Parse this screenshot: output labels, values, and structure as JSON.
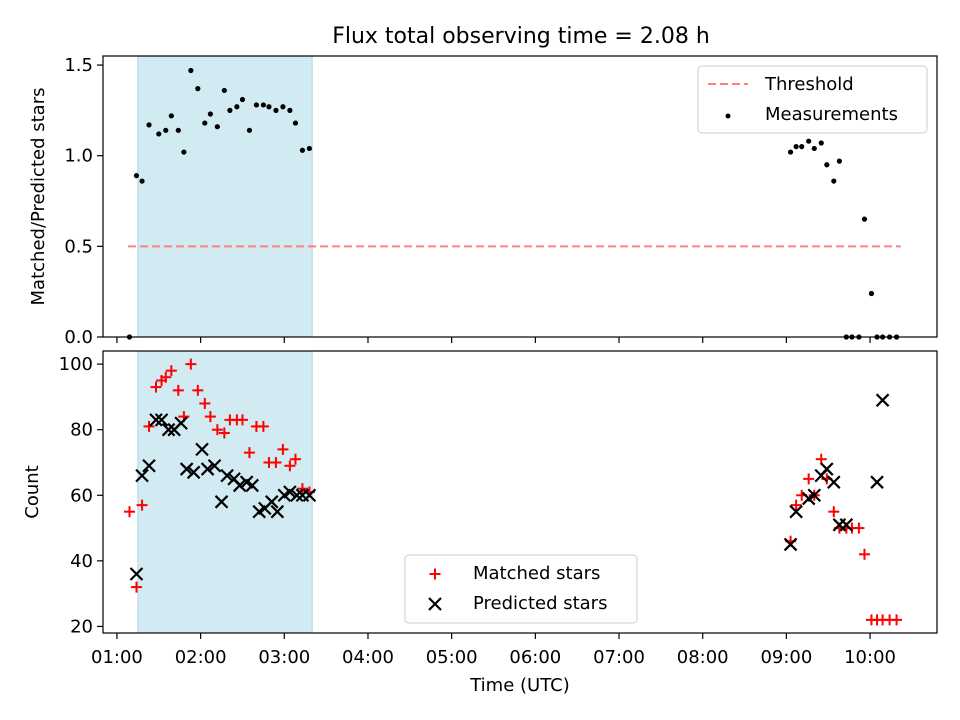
{
  "title": "Flux total observing time = 2.08 h",
  "colors": {
    "shade": "#add8e6",
    "threshold": "#ff7f7f",
    "matched": "#ff0000",
    "predicted": "#000000",
    "measurement": "#000000"
  },
  "chart_data": [
    {
      "type": "scatter",
      "ylabel": "Matched/Predicted stars",
      "xlabel": "",
      "ylim": [
        0,
        1.55
      ],
      "yticks": [
        0.0,
        0.5,
        1.0,
        1.5
      ],
      "ytick_labels": [
        "0.0",
        "0.5",
        "1.0",
        "1.5"
      ],
      "legend_position": "top-right",
      "legend": [
        "Threshold",
        "Measurements"
      ],
      "threshold": {
        "name": "Threshold",
        "y": 0.5,
        "x_start": "01:08",
        "x_end": "10:22",
        "style": "dashed"
      },
      "shaded_region": {
        "x_start": "01:15",
        "x_end": "03:20"
      },
      "series": [
        {
          "name": "Measurements",
          "x": [
            "01:09",
            "01:14",
            "01:18",
            "01:23",
            "01:30",
            "01:35",
            "01:39",
            "01:44",
            "01:48",
            "01:53",
            "01:58",
            "02:03",
            "02:07",
            "02:12",
            "02:17",
            "02:21",
            "02:26",
            "02:30",
            "02:35",
            "02:40",
            "02:45",
            "02:49",
            "02:54",
            "02:59",
            "03:04",
            "03:08",
            "03:13",
            "03:18",
            "09:03",
            "09:07",
            "09:11",
            "09:16",
            "09:20",
            "09:25",
            "09:29",
            "09:34",
            "09:38",
            "09:43",
            "09:47",
            "09:52",
            "09:56",
            "10:01",
            "10:05",
            "10:09",
            "10:14",
            "10:19"
          ],
          "y": [
            0.0,
            0.89,
            0.86,
            1.17,
            1.12,
            1.14,
            1.22,
            1.14,
            1.02,
            1.47,
            1.37,
            1.18,
            1.23,
            1.16,
            1.36,
            1.25,
            1.27,
            1.31,
            1.14,
            1.28,
            1.28,
            1.27,
            1.25,
            1.27,
            1.25,
            1.18,
            1.03,
            1.04,
            1.02,
            1.05,
            1.05,
            1.08,
            1.04,
            1.07,
            0.95,
            0.86,
            0.97,
            0.0,
            0.0,
            0.0,
            0.65,
            0.24,
            0.0,
            0.0,
            0.0,
            0.0
          ]
        }
      ]
    },
    {
      "type": "scatter",
      "ylabel": "Count",
      "xlabel": "Time (UTC)",
      "ylim": [
        18,
        104
      ],
      "yticks": [
        20,
        40,
        60,
        80,
        100
      ],
      "ytick_labels": [
        "20",
        "40",
        "60",
        "80",
        "100"
      ],
      "xlim": [
        "00:50",
        "10:48"
      ],
      "xticks": [
        "01:00",
        "02:00",
        "03:00",
        "04:00",
        "05:00",
        "06:00",
        "07:00",
        "08:00",
        "09:00",
        "10:00"
      ],
      "xtick_labels": [
        "01:00",
        "02:00",
        "03:00",
        "04:00",
        "05:00",
        "06:00",
        "07:00",
        "08:00",
        "09:00",
        "10:00"
      ],
      "legend_position": "bottom-center",
      "legend": [
        "Matched stars",
        "Predicted stars"
      ],
      "shaded_region": {
        "x_start": "01:15",
        "x_end": "03:20"
      },
      "series": [
        {
          "name": "Matched stars",
          "marker": "plus",
          "x": [
            "01:09",
            "01:14",
            "01:18",
            "01:23",
            "01:28",
            "01:32",
            "01:35",
            "01:39",
            "01:44",
            "01:48",
            "01:53",
            "01:58",
            "02:03",
            "02:07",
            "02:12",
            "02:17",
            "02:21",
            "02:26",
            "02:30",
            "02:35",
            "02:40",
            "02:45",
            "02:49",
            "02:54",
            "02:59",
            "03:04",
            "03:08",
            "03:13",
            "03:18",
            "09:03",
            "09:07",
            "09:11",
            "09:16",
            "09:20",
            "09:25",
            "09:29",
            "09:34",
            "09:38",
            "09:43",
            "09:47",
            "09:52",
            "09:56",
            "10:01",
            "10:05",
            "10:09",
            "10:14",
            "10:19"
          ],
          "y": [
            55,
            32,
            57,
            81,
            93,
            95,
            96,
            98,
            92,
            84,
            100,
            92,
            88,
            84,
            80,
            79,
            83,
            83,
            83,
            73,
            81,
            81,
            70,
            70,
            74,
            69,
            71,
            62,
            61,
            46,
            57,
            60,
            65,
            60,
            71,
            65,
            55,
            50,
            50,
            50,
            50,
            42,
            22,
            22,
            22,
            22,
            22
          ]
        },
        {
          "name": "Predicted stars",
          "marker": "x",
          "x": [
            "01:14",
            "01:18",
            "01:23",
            "01:28",
            "01:32",
            "01:37",
            "01:41",
            "01:46",
            "01:50",
            "01:55",
            "02:01",
            "02:05",
            "02:10",
            "02:15",
            "02:19",
            "02:24",
            "02:28",
            "02:33",
            "02:37",
            "02:42",
            "02:46",
            "02:51",
            "02:55",
            "03:00",
            "03:04",
            "03:09",
            "03:13",
            "03:18",
            "09:03",
            "09:07",
            "09:16",
            "09:20",
            "09:25",
            "09:29",
            "09:34",
            "09:38",
            "09:43",
            "10:05",
            "10:09"
          ],
          "y": [
            36,
            66,
            69,
            83,
            83,
            80,
            80,
            82,
            68,
            67,
            74,
            68,
            69,
            58,
            66,
            65,
            63,
            64,
            63,
            55,
            56,
            58,
            55,
            60,
            61,
            60,
            60,
            60,
            45,
            55,
            59,
            60,
            66,
            68,
            64,
            51,
            51,
            64,
            89
          ]
        }
      ]
    }
  ]
}
